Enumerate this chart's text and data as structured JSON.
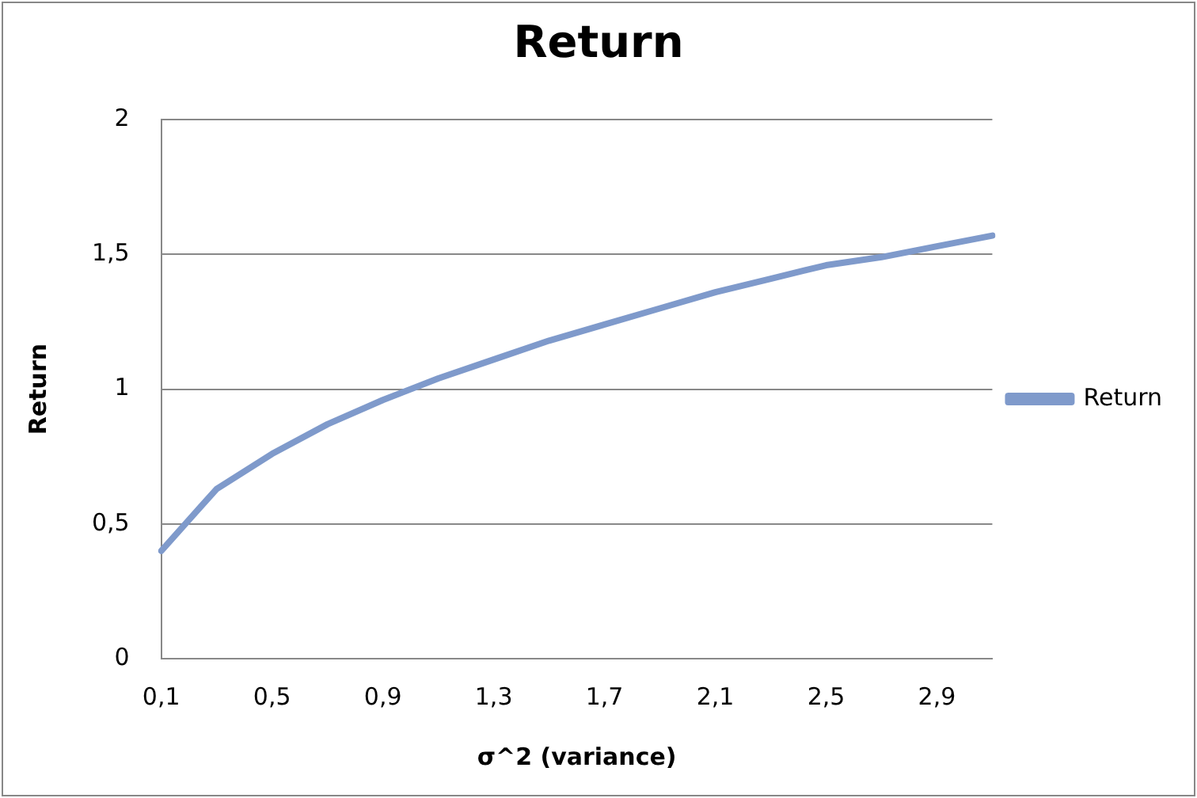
{
  "chart_data": {
    "type": "line",
    "title": "Return",
    "xlabel": "σ^2 (variance)",
    "ylabel": "Return",
    "categories": [
      "0,1",
      null,
      "0,5",
      null,
      "0,9",
      null,
      "1,3",
      null,
      "1,7",
      null,
      "2,1",
      null,
      "2,5",
      null,
      "2,9",
      null
    ],
    "series": [
      {
        "name": "Return",
        "color": "#7f9acb",
        "values": [
          0.4,
          0.63,
          0.76,
          0.87,
          0.96,
          1.04,
          1.11,
          1.18,
          1.24,
          1.3,
          1.36,
          1.41,
          1.46,
          1.49,
          1.53,
          1.57
        ]
      }
    ],
    "ylim": [
      0,
      2
    ],
    "yticks": [
      0,
      {
        "value": 0.5,
        "label": "0,5"
      },
      1,
      {
        "value": 1.5,
        "label": "1,5"
      },
      2
    ],
    "grid": "y",
    "legend": "right",
    "marker": "none",
    "line_style": "solid"
  }
}
